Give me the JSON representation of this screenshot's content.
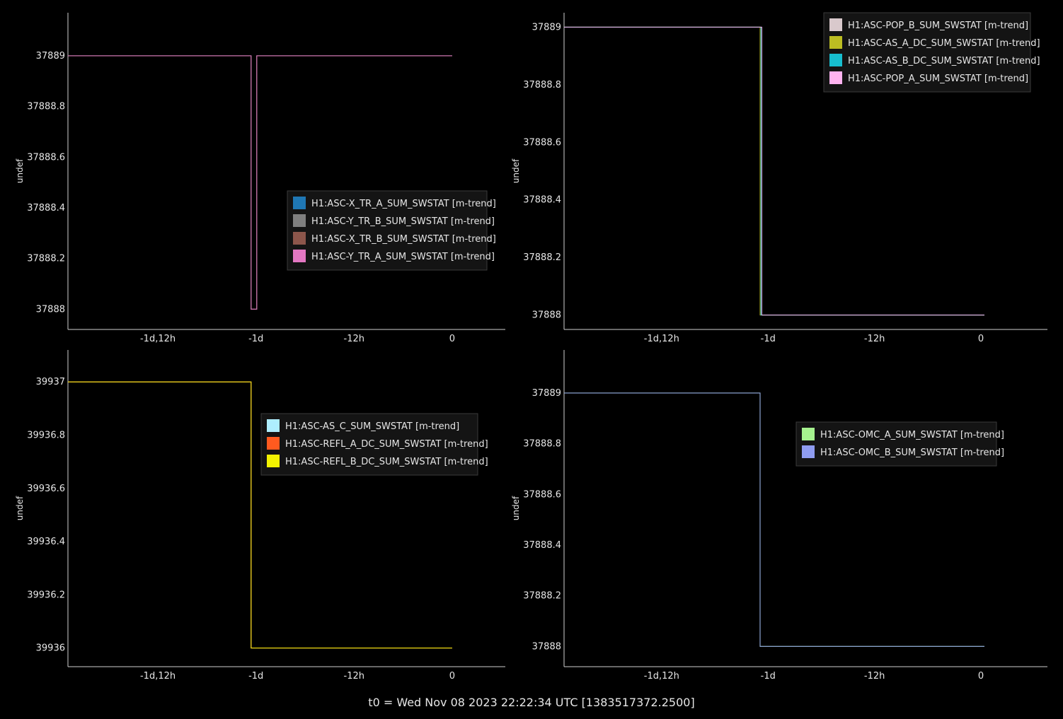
{
  "footer": "t0 = Wed Nov 08 2023 22:22:34 UTC [1383517372.2500]",
  "x_unit": "hours relative to t0",
  "x_ticks": [
    {
      "value": -36,
      "label": "-1d,12h"
    },
    {
      "value": -24,
      "label": "-1d"
    },
    {
      "value": -12,
      "label": "-12h"
    },
    {
      "value": 0,
      "label": "0"
    }
  ],
  "chart_data": [
    {
      "type": "line",
      "ylabel": "undef",
      "xlim": [
        -47,
        6.5
      ],
      "ylim": [
        37887.92,
        37889.17
      ],
      "yticks": [
        37888,
        37888.2,
        37888.4,
        37888.6,
        37888.8,
        37889
      ],
      "ytick_labels": [
        "37888",
        "37888.2",
        "37888.4",
        "37888.6",
        "37888.8",
        "37889"
      ],
      "legend_position": "right-middle",
      "series": [
        {
          "name": "H1:ASC-X_TR_A_SUM_SWSTAT [m-trend]",
          "color": "#1f77b4",
          "x": [
            -47,
            -24.6,
            -24.6,
            -23.9,
            -23.9,
            0
          ],
          "y": [
            37889,
            37889,
            37888,
            37888,
            37889,
            37889
          ]
        },
        {
          "name": "H1:ASC-Y_TR_B_SUM_SWSTAT [m-trend]",
          "color": "#7f7f7f",
          "x": [
            -47,
            -24.6,
            -24.6,
            -23.9,
            -23.9,
            0
          ],
          "y": [
            37889,
            37889,
            37888,
            37888,
            37889,
            37889
          ]
        },
        {
          "name": "H1:ASC-X_TR_B_SUM_SWSTAT [m-trend]",
          "color": "#8c564b",
          "x": [
            -47,
            -24.6,
            -24.6,
            -23.9,
            -23.9,
            0
          ],
          "y": [
            37889,
            37889,
            37888,
            37888,
            37889,
            37889
          ]
        },
        {
          "name": "H1:ASC-Y_TR_A_SUM_SWSTAT [m-trend]",
          "color": "#e377c2",
          "x": [
            -47,
            -24.6,
            -24.6,
            -23.9,
            -23.9,
            0
          ],
          "y": [
            37889,
            37889,
            37888,
            37888,
            37889,
            37889
          ]
        }
      ]
    },
    {
      "type": "line",
      "ylabel": "undef",
      "xlim": [
        -47,
        7.5
      ],
      "ylim": [
        37887.95,
        37889.05
      ],
      "yticks": [
        37888,
        37888.2,
        37888.4,
        37888.6,
        37888.8,
        37889
      ],
      "ytick_labels": [
        "37888",
        "37888.2",
        "37888.4",
        "37888.6",
        "37888.8",
        "37889"
      ],
      "legend_position": "top-right",
      "series": [
        {
          "name": "H1:ASC-POP_B_SUM_SWSTAT [m-trend]",
          "color": "#d9c9cc",
          "x": [
            -47,
            -24.8,
            -24.8,
            0.4
          ],
          "y": [
            37889,
            37889,
            37888,
            37888
          ]
        },
        {
          "name": "H1:ASC-AS_A_DC_SUM_SWSTAT [m-trend]",
          "color": "#bcbd22",
          "x": [
            -47,
            -24.9,
            -24.9,
            0.4
          ],
          "y": [
            37889,
            37889,
            37888,
            37888
          ]
        },
        {
          "name": "H1:ASC-AS_B_DC_SUM_SWSTAT [m-trend]",
          "color": "#17becf",
          "x": [
            -47,
            -24.8,
            -24.8,
            0.4
          ],
          "y": [
            37889,
            37889,
            37888,
            37888
          ]
        },
        {
          "name": "H1:ASC-POP_A_SUM_SWSTAT [m-trend]",
          "color": "#ffb3f0",
          "x": [
            -47,
            -24.7,
            -24.7,
            0.4
          ],
          "y": [
            37889,
            37889,
            37888,
            37888
          ]
        }
      ]
    },
    {
      "type": "line",
      "ylabel": "undef",
      "xlim": [
        -47,
        6.5
      ],
      "ylim": [
        39935.93,
        39937.12
      ],
      "yticks": [
        39936,
        39936.2,
        39936.4,
        39936.6,
        39936.8,
        39937
      ],
      "ytick_labels": [
        "39936",
        "39936.2",
        "39936.4",
        "39936.6",
        "39936.8",
        "39937"
      ],
      "legend_position": "top-right",
      "series": [
        {
          "name": "H1:ASC-AS_C_SUM_SWSTAT [m-trend]",
          "color": "#aeeeff",
          "x": [
            -47,
            -24.6,
            -24.6,
            0
          ],
          "y": [
            39937,
            39937,
            39936,
            39936
          ]
        },
        {
          "name": "H1:ASC-REFL_A_DC_SUM_SWSTAT [m-trend]",
          "color": "#ff5a1f",
          "x": [
            -47,
            -24.6,
            -24.6,
            0
          ],
          "y": [
            39937,
            39937,
            39936,
            39936
          ]
        },
        {
          "name": "H1:ASC-REFL_B_DC_SUM_SWSTAT [m-trend]",
          "color": "#f2f200",
          "x": [
            -47,
            -24.6,
            -24.6,
            0
          ],
          "y": [
            39937,
            39937,
            39936,
            39936
          ]
        }
      ]
    },
    {
      "type": "line",
      "ylabel": "undef",
      "xlim": [
        -47,
        7.5
      ],
      "ylim": [
        37887.92,
        37889.17
      ],
      "yticks": [
        37888,
        37888.2,
        37888.4,
        37888.6,
        37888.8,
        37889
      ],
      "ytick_labels": [
        "37888",
        "37888.2",
        "37888.4",
        "37888.6",
        "37888.8",
        "37889"
      ],
      "legend_position": "top-right",
      "series": [
        {
          "name": "H1:ASC-OMC_A_SUM_SWSTAT [m-trend]",
          "color": "#a6f28f",
          "x": [
            -47,
            -24.9,
            -24.9,
            0.4
          ],
          "y": [
            37889,
            37889,
            37888,
            37888
          ]
        },
        {
          "name": "H1:ASC-OMC_B_SUM_SWSTAT [m-trend]",
          "color": "#8f9cf0",
          "x": [
            -47,
            -24.9,
            -24.9,
            0.4
          ],
          "y": [
            37889,
            37889,
            37888,
            37888
          ]
        }
      ]
    }
  ]
}
